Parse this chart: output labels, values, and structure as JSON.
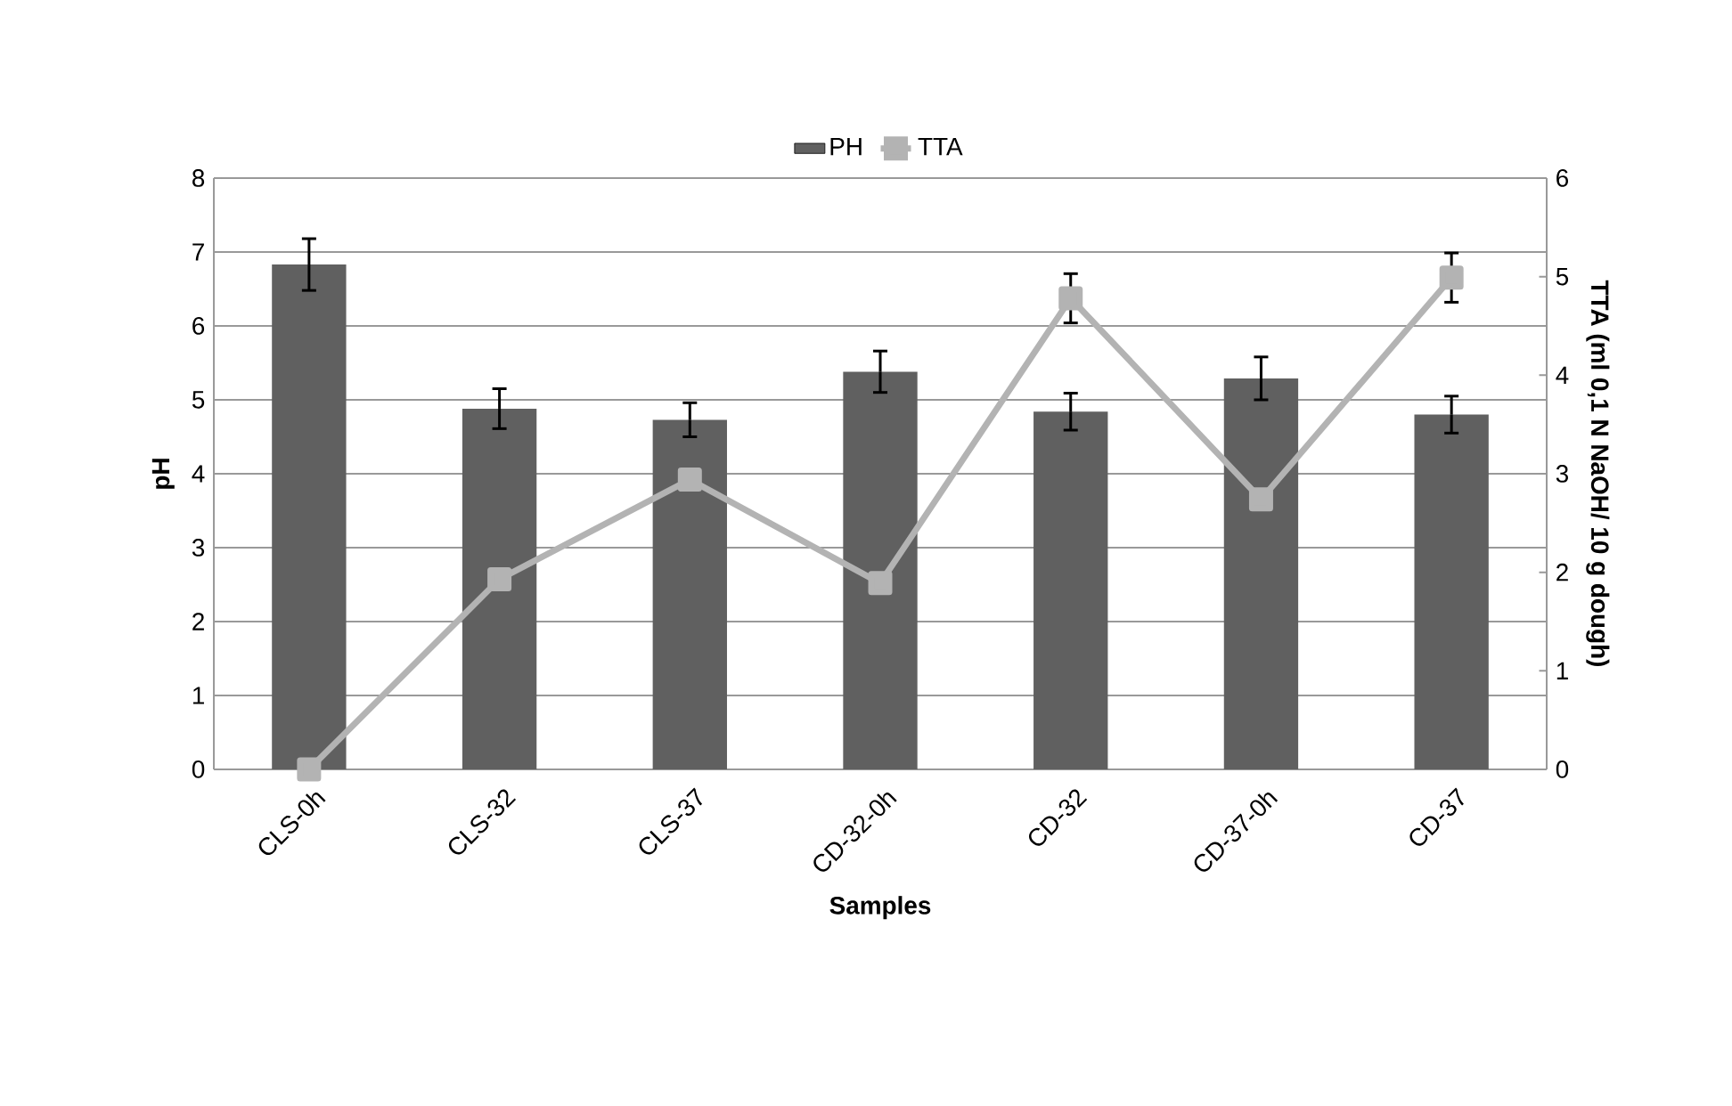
{
  "chart_data": {
    "type": "bar",
    "xlabel": "Samples",
    "ylabel": "pH",
    "y2label": "TTA (ml 0,1 N NaOH/ 10 g dough)",
    "categories": [
      "CLS-0h",
      "CLS-32",
      "CLS-37",
      "CD-32-0h",
      "CD-32",
      "CD-37-0h",
      "CD-37"
    ],
    "series": [
      {
        "name": "PH",
        "color": "#606060",
        "values": [
          6.83,
          4.88,
          4.73,
          5.38,
          4.84,
          5.29,
          4.8
        ],
        "errors": [
          0.35,
          0.27,
          0.23,
          0.28,
          0.25,
          0.29,
          0.25
        ]
      },
      {
        "name": "TTA",
        "type": "line",
        "axis": "y2",
        "color": "#b3b3b3",
        "marker": "square",
        "values": [
          0,
          1.93,
          2.94,
          1.89,
          4.78,
          2.74,
          4.99
        ],
        "errors": [
          null,
          null,
          null,
          null,
          0.25,
          null,
          0.25
        ]
      }
    ],
    "ylim": [
      0,
      8
    ],
    "yticks": [
      0,
      1,
      2,
      3,
      4,
      5,
      6,
      7,
      8
    ],
    "y2lim": [
      0,
      6
    ],
    "y2ticks": [
      0,
      1,
      2,
      3,
      4,
      5,
      6
    ],
    "grid": "y",
    "legend": "top"
  }
}
